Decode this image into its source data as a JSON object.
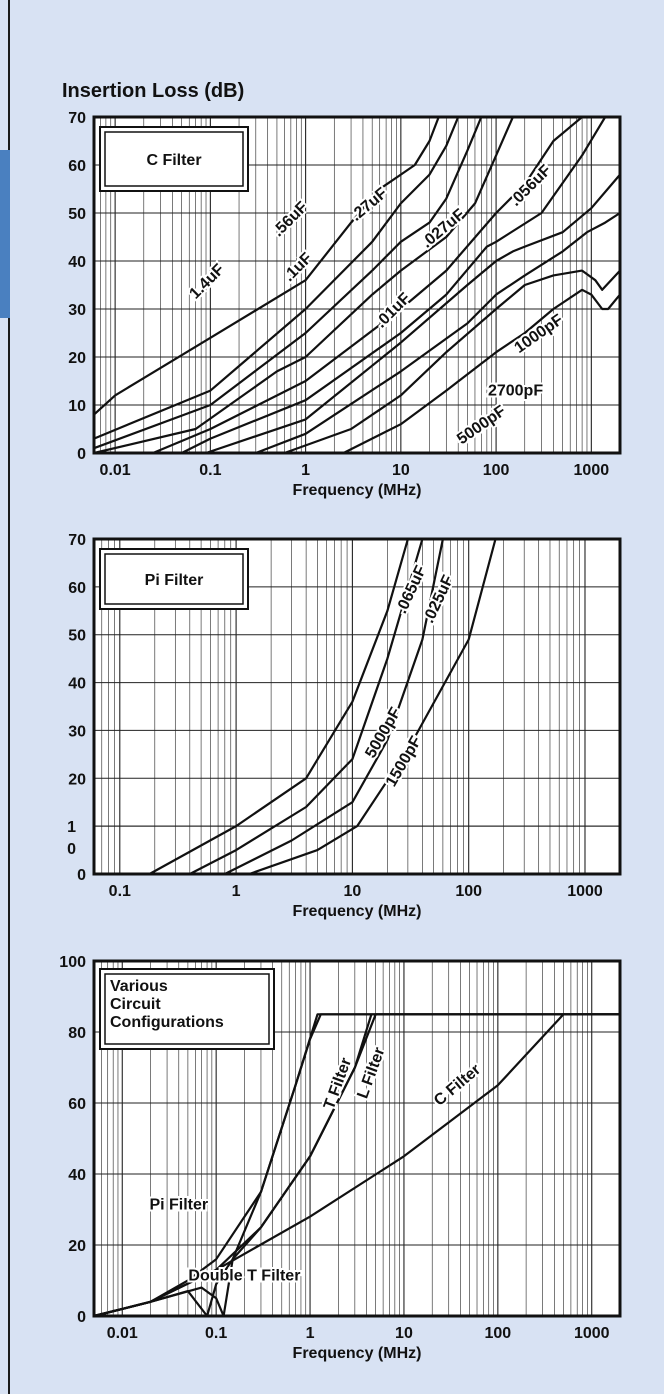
{
  "page": {
    "title": "Insertion Loss  (dB)",
    "background": "#d8e2f3",
    "accent": "#4a80c0"
  },
  "chart_data": [
    {
      "type": "line",
      "legend_box": [
        "C Filter"
      ],
      "xlabel": "Frequency (MHz)",
      "ylabel": "Insertion Loss (dB)",
      "xscale": "log",
      "xlim": [
        0.006,
        2000
      ],
      "ylim": [
        0,
        70
      ],
      "xticks": [
        "0.01",
        "0.1",
        "1",
        "10",
        "100",
        "1000"
      ],
      "yticks": [
        "0",
        "10",
        "20",
        "30",
        "40",
        "50",
        "60",
        "70"
      ],
      "grid": true,
      "series": [
        {
          "name": "1.4uF",
          "x": [
            0.006,
            0.01,
            0.1,
            1,
            3,
            6,
            10,
            14,
            20,
            25
          ],
          "y": [
            8,
            12,
            24,
            36,
            48,
            55,
            58,
            60,
            65,
            70
          ]
        },
        {
          "name": ".56uF",
          "x": [
            0.006,
            0.1,
            1,
            5,
            10,
            20,
            30,
            40
          ],
          "y": [
            3,
            13,
            30,
            44,
            52,
            58,
            64,
            70
          ]
        },
        {
          "name": ".27uF",
          "x": [
            0.006,
            0.1,
            1,
            5,
            10,
            20,
            30,
            50,
            70
          ],
          "y": [
            1,
            10,
            25,
            38,
            44,
            48,
            53,
            63,
            70
          ]
        },
        {
          "name": ".1uF",
          "x": [
            0.006,
            0.07,
            0.5,
            1,
            5,
            10,
            30,
            60,
            100,
            150
          ],
          "y": [
            0,
            5,
            17,
            20,
            33,
            38,
            45,
            52,
            62,
            70
          ]
        },
        {
          "name": ".056uF",
          "x": [
            0.025,
            0.1,
            1,
            10,
            30,
            100,
            200,
            400,
            800
          ],
          "y": [
            0,
            5,
            15,
            30,
            38,
            50,
            56,
            65,
            70
          ]
        },
        {
          "name": ".027uF",
          "x": [
            0.05,
            0.1,
            1,
            10,
            30,
            80,
            100,
            300,
            800,
            1400
          ],
          "y": [
            0,
            3,
            11,
            25,
            33,
            43,
            44,
            50,
            62,
            70
          ]
        },
        {
          "name": ".01uF",
          "x": [
            0.09,
            1,
            10,
            50,
            100,
            150,
            200,
            500,
            1000,
            2000
          ],
          "y": [
            0,
            7,
            23,
            35,
            40,
            42,
            43,
            46,
            51,
            58
          ]
        },
        {
          "name": "5000pF",
          "x": [
            0.3,
            1,
            10,
            50,
            100,
            200,
            500,
            900,
            1400,
            2000
          ],
          "y": [
            0,
            4,
            17,
            27,
            33,
            37,
            42,
            46,
            48,
            50
          ]
        },
        {
          "name": "2700pF",
          "x": [
            0.6,
            3,
            10,
            30,
            100,
            200,
            400,
            800,
            1100,
            1300,
            2000
          ],
          "y": [
            0,
            5,
            12,
            21,
            30,
            35,
            37,
            38,
            36,
            34,
            38
          ]
        },
        {
          "name": "1000pF",
          "x": [
            2.5,
            10,
            30,
            100,
            200,
            400,
            800,
            1000,
            1300,
            1500,
            2000
          ],
          "y": [
            0,
            6,
            13,
            21,
            25,
            30,
            34,
            33,
            30,
            30,
            33
          ]
        }
      ],
      "labels": [
        {
          "text": "1.4uF",
          "x": 0.1,
          "y": 35
        },
        {
          "text": ".56uF",
          "x": 0.75,
          "y": 48
        },
        {
          "text": ".27uF",
          "x": 5.0,
          "y": 51
        },
        {
          "text": ".1uF",
          "x": 0.9,
          "y": 38
        },
        {
          "text": ".056uF",
          "x": 250,
          "y": 55
        },
        {
          "text": ".027uF",
          "x": 30,
          "y": 46
        },
        {
          "text": ".01uF",
          "x": 9,
          "y": 29
        },
        {
          "text": "1000pF",
          "x": 300,
          "y": 24
        },
        {
          "text": "2700pF",
          "x": 160,
          "y": 12
        },
        {
          "text": "5000pF",
          "x": 75,
          "y": 5
        }
      ]
    },
    {
      "type": "line",
      "legend_box": [
        "Pi Filter"
      ],
      "xlabel": "Frequency (MHz)",
      "xscale": "log",
      "xlim": [
        0.06,
        2000
      ],
      "ylim": [
        0,
        70
      ],
      "xticks": [
        "0.1",
        "1",
        "10",
        "100",
        "1000"
      ],
      "yticks": [
        "0",
        "1",
        "20",
        "30",
        "40",
        "50",
        "60",
        "70"
      ],
      "grid": true,
      "series": [
        {
          "name": ".065uF",
          "x": [
            0.18,
            1,
            4,
            10,
            20,
            30
          ],
          "y": [
            0,
            10,
            20,
            36,
            55,
            70
          ]
        },
        {
          "name": ".025uF",
          "x": [
            0.4,
            1,
            4,
            10,
            20,
            40
          ],
          "y": [
            0,
            5,
            14,
            24,
            45,
            70
          ]
        },
        {
          "name": "5000pF",
          "x": [
            0.8,
            3,
            10,
            20,
            40,
            60
          ],
          "y": [
            0,
            7,
            15,
            28,
            49,
            70
          ]
        },
        {
          "name": "1500pF",
          "x": [
            1.3,
            5,
            11,
            30,
            100,
            170
          ],
          "y": [
            0,
            5,
            10,
            26,
            49,
            70
          ]
        }
      ],
      "labels": [
        {
          "text": ".065uF",
          "x": 35,
          "y": 59
        },
        {
          "text": ".025uF",
          "x": 60,
          "y": 57
        },
        {
          "text": "5000pF",
          "x": 20,
          "y": 29
        },
        {
          "text": "1500pF",
          "x": 30,
          "y": 23
        }
      ]
    },
    {
      "type": "line",
      "legend_box": [
        "Various",
        "Circuit",
        "Configurations"
      ],
      "xlabel": "Frequency (MHz)",
      "xscale": "log",
      "xlim": [
        0.005,
        2000
      ],
      "ylim": [
        0,
        100
      ],
      "xticks": [
        "0.01",
        "0.1",
        "1",
        "10",
        "100",
        "1000"
      ],
      "yticks": [
        "0",
        "20",
        "40",
        "60",
        "80",
        "100"
      ],
      "grid": true,
      "series": [
        {
          "name": "Pi Filter",
          "x": [
            0.005,
            0.02,
            0.05,
            0.1,
            0.3,
            0.7,
            1.0,
            1.3,
            2000
          ],
          "y": [
            0,
            4,
            10,
            16,
            35,
            65,
            78,
            85,
            85
          ]
        },
        {
          "name": "Double T Filter",
          "x": [
            0.005,
            0.02,
            0.05,
            0.08,
            0.1,
            0.15,
            0.3,
            0.7,
            1.2,
            2000
          ],
          "y": [
            0,
            4,
            7,
            0,
            9,
            16,
            35,
            65,
            85,
            85
          ]
        },
        {
          "name": "T Filter",
          "x": [
            0.005,
            0.02,
            0.07,
            0.1,
            0.12,
            0.15,
            0.3,
            1,
            3,
            4.5
          ],
          "y": [
            0,
            4,
            8,
            5,
            0,
            16,
            25,
            45,
            70,
            85
          ]
        },
        {
          "name": "L Filter",
          "x": [
            0.005,
            0.02,
            0.1,
            0.3,
            1,
            3,
            5,
            2000
          ],
          "y": [
            0,
            4,
            13,
            25,
            45,
            70,
            85,
            85
          ]
        },
        {
          "name": "C Filter",
          "x": [
            0.005,
            0.02,
            0.1,
            1,
            10,
            100,
            500,
            2000
          ],
          "y": [
            0,
            4,
            13,
            28,
            45,
            65,
            85,
            85
          ]
        }
      ],
      "labels": [
        {
          "text": "T Filter",
          "x": 2.2,
          "y": 65
        },
        {
          "text": "L Filter",
          "x": 5,
          "y": 68
        },
        {
          "text": "C Filter",
          "x": 40,
          "y": 64
        },
        {
          "text": "Pi Filter",
          "x": 0.04,
          "y": 30
        },
        {
          "text": "Double T Filter",
          "x": 0.2,
          "y": 10
        }
      ]
    }
  ]
}
